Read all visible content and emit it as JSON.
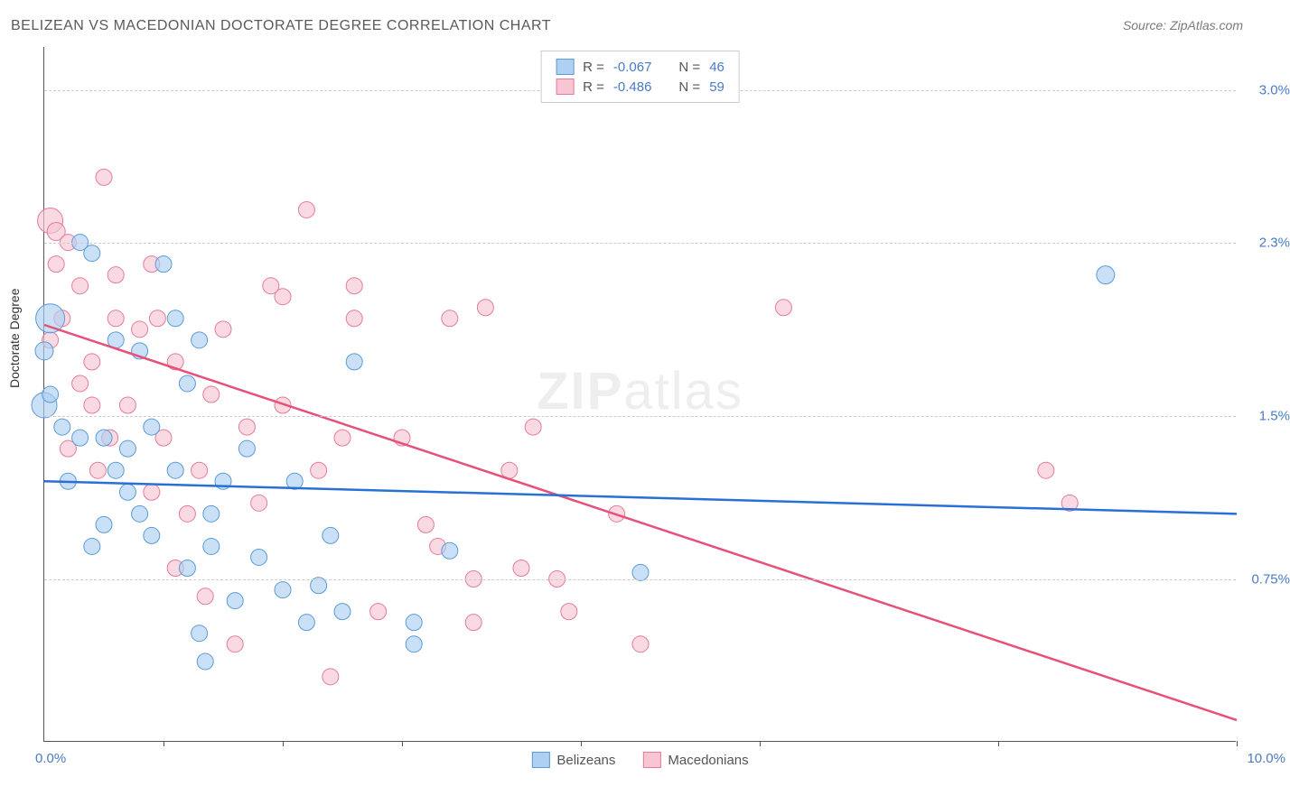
{
  "title": "BELIZEAN VS MACEDONIAN DOCTORATE DEGREE CORRELATION CHART",
  "source_label": "Source: ZipAtlas.com",
  "ylabel": "Doctorate Degree",
  "watermark_bold": "ZIP",
  "watermark_rest": "atlas",
  "chart": {
    "type": "scatter",
    "xlim": [
      0,
      10
    ],
    "ylim": [
      0,
      3.2
    ],
    "yticks": [
      0.75,
      1.5,
      2.3,
      3.0
    ],
    "ytick_labels": [
      "0.75%",
      "1.5%",
      "2.3%",
      "3.0%"
    ],
    "xtick_positions": [
      1,
      2,
      3,
      4.5,
      6,
      8,
      10
    ],
    "xlabel_min": "0.0%",
    "xlabel_max": "10.0%",
    "grid_color": "#cccccc",
    "background_color": "#ffffff",
    "axis_color": "#555555",
    "tick_color": "#4a7bc8",
    "series": {
      "belizeans": {
        "label": "Belizeans",
        "fill": "#aed0f2",
        "stroke": "#5a9bd8",
        "line_color": "#2970d6",
        "R": "-0.067",
        "N": "46",
        "regression": {
          "y_at_x0": 1.2,
          "y_at_xmax": 1.05
        },
        "points": [
          [
            0.05,
            1.95,
            16
          ],
          [
            0.0,
            1.55,
            14
          ],
          [
            0.0,
            1.8,
            10
          ],
          [
            0.15,
            1.45,
            9
          ],
          [
            0.05,
            1.6,
            9
          ],
          [
            0.4,
            2.25,
            9
          ],
          [
            1.0,
            2.2,
            9
          ],
          [
            0.8,
            1.8,
            9
          ],
          [
            0.3,
            1.4,
            9
          ],
          [
            0.7,
            1.15,
            9
          ],
          [
            0.5,
            1.0,
            9
          ],
          [
            0.9,
            0.95,
            9
          ],
          [
            1.1,
            1.25,
            9
          ],
          [
            1.3,
            1.85,
            9
          ],
          [
            1.2,
            0.8,
            9
          ],
          [
            1.5,
            1.2,
            9
          ],
          [
            1.4,
            1.05,
            9
          ],
          [
            1.7,
            1.35,
            9
          ],
          [
            1.8,
            0.85,
            9
          ],
          [
            1.2,
            1.65,
            9
          ],
          [
            2.0,
            0.7,
            9
          ],
          [
            2.2,
            0.55,
            9
          ],
          [
            2.4,
            0.95,
            9
          ],
          [
            2.1,
            1.2,
            9
          ],
          [
            2.5,
            0.6,
            9
          ],
          [
            2.3,
            0.72,
            9
          ],
          [
            3.4,
            0.88,
            9
          ],
          [
            3.1,
            0.55,
            9
          ],
          [
            5.0,
            0.78,
            9
          ],
          [
            0.5,
            1.4,
            9
          ],
          [
            0.9,
            1.45,
            9
          ],
          [
            1.3,
            0.5,
            9
          ],
          [
            0.6,
            1.85,
            9
          ],
          [
            0.3,
            2.3,
            9
          ],
          [
            1.1,
            1.95,
            9
          ],
          [
            0.2,
            1.2,
            9
          ],
          [
            0.4,
            0.9,
            9
          ],
          [
            0.7,
            1.35,
            9
          ],
          [
            1.6,
            0.65,
            9
          ],
          [
            2.6,
            1.75,
            9
          ],
          [
            1.35,
            0.37,
            9
          ],
          [
            1.4,
            0.9,
            9
          ],
          [
            0.6,
            1.25,
            9
          ],
          [
            0.8,
            1.05,
            9
          ],
          [
            8.9,
            2.15,
            10
          ],
          [
            3.1,
            0.45,
            9
          ]
        ]
      },
      "macedonians": {
        "label": "Macedonians",
        "fill": "#f8c6d2",
        "stroke": "#e67a9a",
        "line_color": "#e6517a",
        "R": "-0.486",
        "N": "59",
        "regression": {
          "y_at_x0": 1.92,
          "y_at_xmax": 0.1
        },
        "points": [
          [
            0.05,
            2.4,
            14
          ],
          [
            0.1,
            2.35,
            10
          ],
          [
            0.5,
            2.6,
            9
          ],
          [
            0.1,
            2.2,
            9
          ],
          [
            0.3,
            2.1,
            9
          ],
          [
            0.2,
            2.3,
            9
          ],
          [
            0.6,
            2.15,
            9
          ],
          [
            0.8,
            1.9,
            9
          ],
          [
            0.4,
            1.75,
            9
          ],
          [
            0.7,
            1.55,
            9
          ],
          [
            0.9,
            2.2,
            9
          ],
          [
            1.0,
            1.4,
            9
          ],
          [
            1.1,
            1.75,
            9
          ],
          [
            1.3,
            1.25,
            9
          ],
          [
            1.5,
            1.9,
            9
          ],
          [
            1.4,
            1.6,
            9
          ],
          [
            1.6,
            0.45,
            9
          ],
          [
            1.8,
            1.1,
            9
          ],
          [
            1.7,
            1.45,
            9
          ],
          [
            2.0,
            1.55,
            9
          ],
          [
            2.0,
            2.05,
            9
          ],
          [
            2.2,
            2.45,
            9
          ],
          [
            2.4,
            0.3,
            9
          ],
          [
            2.5,
            1.4,
            9
          ],
          [
            2.6,
            1.95,
            9
          ],
          [
            2.8,
            0.6,
            9
          ],
          [
            3.0,
            1.4,
            9
          ],
          [
            3.2,
            1.0,
            9
          ],
          [
            3.4,
            1.95,
            9
          ],
          [
            3.3,
            0.9,
            9
          ],
          [
            3.6,
            0.75,
            9
          ],
          [
            3.7,
            2.0,
            9
          ],
          [
            4.1,
            1.45,
            9
          ],
          [
            4.0,
            0.8,
            9
          ],
          [
            4.3,
            0.75,
            9
          ],
          [
            4.4,
            0.6,
            9
          ],
          [
            4.8,
            1.05,
            9
          ],
          [
            5.0,
            0.45,
            9
          ],
          [
            2.3,
            1.25,
            9
          ],
          [
            0.9,
            1.15,
            9
          ],
          [
            1.2,
            1.05,
            9
          ],
          [
            1.1,
            0.8,
            9
          ],
          [
            0.15,
            1.95,
            9
          ],
          [
            2.6,
            2.1,
            9
          ],
          [
            0.6,
            1.95,
            9
          ],
          [
            0.45,
            1.25,
            9
          ],
          [
            0.4,
            1.55,
            9
          ],
          [
            0.2,
            1.35,
            9
          ],
          [
            0.55,
            1.4,
            9
          ],
          [
            1.9,
            2.1,
            9
          ],
          [
            6.2,
            2.0,
            9
          ],
          [
            8.4,
            1.25,
            9
          ],
          [
            8.6,
            1.1,
            9
          ],
          [
            1.35,
            0.67,
            9
          ],
          [
            0.05,
            1.85,
            9
          ],
          [
            0.3,
            1.65,
            9
          ],
          [
            3.6,
            0.55,
            9
          ],
          [
            0.95,
            1.95,
            9
          ],
          [
            3.9,
            1.25,
            9
          ]
        ]
      }
    }
  },
  "legend_top": {
    "r_label": "R =",
    "n_label": "N ="
  },
  "legend_bottom": {
    "item1": "Belizeans",
    "item2": "Macedonians"
  }
}
